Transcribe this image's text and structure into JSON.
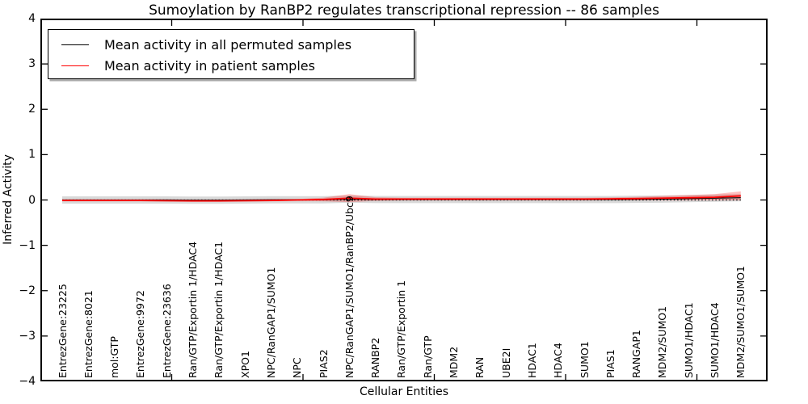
{
  "title": "Sumoylation by RanBP2 regulates transcriptional repression -- 86 samples",
  "legend": {
    "items": [
      {
        "label": "Mean activity in all permuted samples",
        "color": "#000000"
      },
      {
        "label": "Mean activity in patient samples",
        "color": "#ff0000"
      }
    ]
  },
  "chart_data": {
    "type": "line",
    "title": "Sumoylation by RanBP2 regulates transcriptional repression -- 86 samples",
    "xlabel": "Cellular Entities",
    "ylabel": "Inferred Activity",
    "ylim": [
      -4,
      4
    ],
    "yticks": [
      4,
      3,
      2,
      1,
      0,
      -1,
      -2,
      -3,
      -4
    ],
    "ytick_labels": [
      "4",
      "3",
      "2",
      "1",
      "0",
      "−1",
      "−2",
      "−3",
      "−4"
    ],
    "xtick_positions": [
      0,
      5,
      10,
      15,
      20,
      25
    ],
    "grid": false,
    "legend_position": "upper left",
    "zero_line": {
      "style": "dotted",
      "color": "#000000",
      "y": 0
    },
    "categories": [
      "EntrezGene:23225",
      "EntrezGene:8021",
      "mol:GTP",
      "EntrezGene:9972",
      "EntrezGene:23636",
      "Ran/GTP/Exportin 1/HDAC4",
      "Ran/GTP/Exportin 1/HDAC1",
      "XPO1",
      "NPC/RanGAP1/SUMO1",
      "NPC",
      "PIAS2",
      "NPC/RanGAP1/SUMO1/RanBP2/Ubc9",
      "RANBP2",
      "Ran/GTP/Exportin 1",
      "Ran/GTP",
      "MDM2",
      "RAN",
      "UBE2I",
      "HDAC1",
      "HDAC4",
      "SUMO1",
      "PIAS1",
      "RANGAP1",
      "MDM2/SUMO1",
      "SUMO1/HDAC1",
      "SUMO1/HDAC4",
      "MDM2/SUMO1/SUMO1"
    ],
    "series": [
      {
        "name": "Mean activity in all permuted samples",
        "color": "#000000",
        "band_color": "rgba(120,120,120,0.28)",
        "line_width": 1.2,
        "values": [
          0,
          0,
          0,
          0,
          0,
          -0.005,
          -0.005,
          0,
          0.005,
          0.005,
          0.005,
          0.02,
          0.01,
          0.01,
          0.01,
          0.01,
          0.01,
          0.01,
          0.01,
          0.01,
          0.01,
          0.01,
          0.015,
          0.02,
          0.03,
          0.04,
          0.05
        ],
        "band": [
          0.08,
          0.08,
          0.08,
          0.08,
          0.08,
          0.08,
          0.08,
          0.08,
          0.08,
          0.08,
          0.08,
          0.08,
          0.08,
          0.08,
          0.08,
          0.08,
          0.08,
          0.08,
          0.08,
          0.08,
          0.08,
          0.08,
          0.08,
          0.08,
          0.08,
          0.08,
          0.08
        ]
      },
      {
        "name": "Mean activity in patient samples",
        "color": "#ff0000",
        "band_color": "rgba(255,0,0,0.25)",
        "line_width": 1.8,
        "values": [
          -0.01,
          -0.01,
          -0.01,
          -0.01,
          -0.015,
          -0.02,
          -0.02,
          -0.015,
          -0.01,
          0,
          0.01,
          0.04,
          0.02,
          0.02,
          0.02,
          0.02,
          0.02,
          0.02,
          0.02,
          0.02,
          0.02,
          0.025,
          0.03,
          0.04,
          0.05,
          0.06,
          0.09
        ],
        "band": [
          0.02,
          0.02,
          0.02,
          0.02,
          0.02,
          0.02,
          0.02,
          0.02,
          0.02,
          0.02,
          0.04,
          0.09,
          0.04,
          0.03,
          0.03,
          0.03,
          0.03,
          0.03,
          0.03,
          0.03,
          0.03,
          0.03,
          0.04,
          0.05,
          0.06,
          0.07,
          0.1
        ]
      }
    ]
  }
}
